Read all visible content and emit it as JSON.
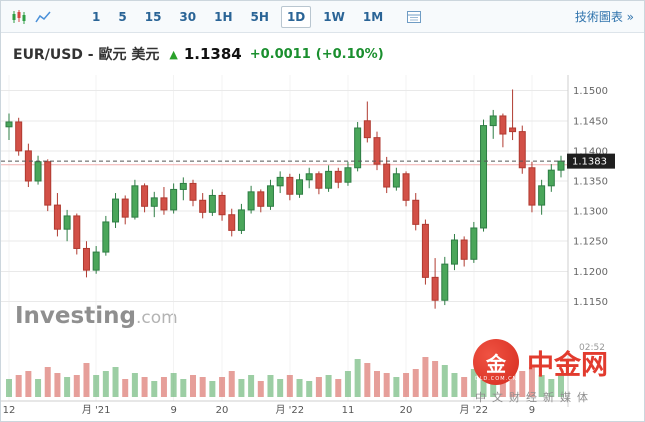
{
  "toolbar": {
    "timeframes": [
      "1",
      "5",
      "15",
      "30",
      "1H",
      "5H",
      "1D",
      "1W",
      "1M"
    ],
    "selected": "1D",
    "tech_link": "技術圖表 »"
  },
  "header": {
    "instrument": "EUR/USD - 歐元 美元",
    "arrow": "▲",
    "price": "1.1384",
    "change": "+0.0011",
    "change_pct": "(+0.10%)"
  },
  "watermark": {
    "brand": "Investing",
    "suffix": ".com"
  },
  "logo": {
    "name": "中金网",
    "subtitle": "中文财经新媒体",
    "circle_char": "金",
    "circle_text": "QLD.COM.CN"
  },
  "footer": {
    "timestamp": "02:52"
  },
  "icons": [
    "candlestick-chart-type-icon",
    "line-chart-type-icon",
    "indicators-panel-icon",
    "up-arrow-icon"
  ],
  "chart_data": {
    "type": "candlestick",
    "symbol": "EUR/USD",
    "interval": "1D",
    "last_price": 1.1383,
    "last_price_label": "1.1383",
    "prev_line": 1.1377,
    "ylim": [
      1.1086,
      1.1526
    ],
    "y_ticks": [
      {
        "v": 1.15,
        "label": "1.1500"
      },
      {
        "v": 1.145,
        "label": "1.1450"
      },
      {
        "v": 1.14,
        "label": "1.1400"
      },
      {
        "v": 1.135,
        "label": "1.1350"
      },
      {
        "v": 1.13,
        "label": "1.1300"
      },
      {
        "v": 1.125,
        "label": "1.1250"
      },
      {
        "v": 1.12,
        "label": "1.1200"
      },
      {
        "v": 1.115,
        "label": "1.1150"
      }
    ],
    "x_ticks": [
      {
        "index": 0,
        "label": "12"
      },
      {
        "index": 9,
        "label": "月 '21"
      },
      {
        "index": 17,
        "label": "9"
      },
      {
        "index": 22,
        "label": "20"
      },
      {
        "index": 29,
        "label": "月 '22"
      },
      {
        "index": 35,
        "label": "11"
      },
      {
        "index": 41,
        "label": "20"
      },
      {
        "index": 48,
        "label": "月 '22"
      },
      {
        "index": 54,
        "label": "9"
      }
    ],
    "candles": [
      [
        1.144,
        1.1462,
        1.1418,
        1.1448,
        0.45
      ],
      [
        1.1448,
        1.1455,
        1.1392,
        1.14,
        0.55
      ],
      [
        1.14,
        1.1412,
        1.134,
        1.135,
        0.65
      ],
      [
        1.135,
        1.1392,
        1.1344,
        1.1382,
        0.45
      ],
      [
        1.1382,
        1.1386,
        1.13,
        1.131,
        0.75
      ],
      [
        1.131,
        1.133,
        1.1258,
        1.127,
        0.6
      ],
      [
        1.127,
        1.1302,
        1.125,
        1.1292,
        0.5
      ],
      [
        1.1292,
        1.1296,
        1.1228,
        1.1238,
        0.55
      ],
      [
        1.1238,
        1.125,
        1.119,
        1.1202,
        0.85
      ],
      [
        1.1202,
        1.1242,
        1.1196,
        1.1232,
        0.55
      ],
      [
        1.1232,
        1.1292,
        1.1226,
        1.1282,
        0.65
      ],
      [
        1.1282,
        1.133,
        1.1272,
        1.132,
        0.75
      ],
      [
        1.132,
        1.1326,
        1.1278,
        1.129,
        0.45
      ],
      [
        1.129,
        1.1352,
        1.1286,
        1.1342,
        0.6
      ],
      [
        1.1342,
        1.1346,
        1.1298,
        1.1308,
        0.5
      ],
      [
        1.1308,
        1.1332,
        1.129,
        1.1322,
        0.4
      ],
      [
        1.1322,
        1.134,
        1.1294,
        1.1302,
        0.5
      ],
      [
        1.1302,
        1.1346,
        1.1296,
        1.1336,
        0.6
      ],
      [
        1.1336,
        1.1356,
        1.1318,
        1.1346,
        0.45
      ],
      [
        1.1346,
        1.1352,
        1.1308,
        1.1318,
        0.55
      ],
      [
        1.1318,
        1.133,
        1.1288,
        1.1298,
        0.5
      ],
      [
        1.1298,
        1.1336,
        1.1292,
        1.1326,
        0.4
      ],
      [
        1.1326,
        1.1332,
        1.1284,
        1.1294,
        0.5
      ],
      [
        1.1294,
        1.1304,
        1.1258,
        1.1268,
        0.65
      ],
      [
        1.1268,
        1.1312,
        1.1262,
        1.1302,
        0.45
      ],
      [
        1.1302,
        1.1342,
        1.1296,
        1.1332,
        0.55
      ],
      [
        1.1332,
        1.1336,
        1.1298,
        1.1308,
        0.4
      ],
      [
        1.1308,
        1.1352,
        1.1302,
        1.1342,
        0.55
      ],
      [
        1.1342,
        1.1366,
        1.133,
        1.1356,
        0.45
      ],
      [
        1.1356,
        1.1362,
        1.1318,
        1.1328,
        0.55
      ],
      [
        1.1328,
        1.1362,
        1.1322,
        1.1352,
        0.45
      ],
      [
        1.1352,
        1.1372,
        1.1338,
        1.1362,
        0.4
      ],
      [
        1.1362,
        1.1366,
        1.1328,
        1.1338,
        0.5
      ],
      [
        1.1338,
        1.1376,
        1.1332,
        1.1366,
        0.55
      ],
      [
        1.1366,
        1.1372,
        1.1338,
        1.1348,
        0.45
      ],
      [
        1.1348,
        1.1382,
        1.1342,
        1.1372,
        0.65
      ],
      [
        1.1372,
        1.1448,
        1.1366,
        1.1438,
        0.95
      ],
      [
        1.145,
        1.1482,
        1.1414,
        1.1422,
        0.85
      ],
      [
        1.1422,
        1.1432,
        1.1368,
        1.1378,
        0.65
      ],
      [
        1.1378,
        1.139,
        1.133,
        1.134,
        0.6
      ],
      [
        1.134,
        1.1372,
        1.1334,
        1.1362,
        0.5
      ],
      [
        1.1362,
        1.1366,
        1.1308,
        1.1318,
        0.6
      ],
      [
        1.1318,
        1.133,
        1.1268,
        1.1278,
        0.7
      ],
      [
        1.1278,
        1.1286,
        1.1178,
        1.119,
        1.0
      ],
      [
        1.119,
        1.1222,
        1.1138,
        1.1152,
        0.9
      ],
      [
        1.1152,
        1.1224,
        1.1144,
        1.1212,
        0.8
      ],
      [
        1.1212,
        1.1262,
        1.1202,
        1.1252,
        0.6
      ],
      [
        1.1252,
        1.1258,
        1.1208,
        1.122,
        0.5
      ],
      [
        1.122,
        1.1282,
        1.1214,
        1.1272,
        0.7
      ],
      [
        1.1272,
        1.1452,
        1.1266,
        1.1442,
        1.0
      ],
      [
        1.1442,
        1.1468,
        1.142,
        1.1458,
        0.8
      ],
      [
        1.1458,
        1.1462,
        1.1406,
        1.1428,
        0.7
      ],
      [
        1.1438,
        1.1502,
        1.1418,
        1.1432,
        0.8
      ],
      [
        1.1432,
        1.1442,
        1.1362,
        1.1372,
        0.65
      ],
      [
        1.1372,
        1.1382,
        1.1298,
        1.131,
        0.75
      ],
      [
        1.131,
        1.1352,
        1.1294,
        1.1342,
        0.55
      ],
      [
        1.1342,
        1.1378,
        1.1332,
        1.1368,
        0.45
      ],
      [
        1.1368,
        1.1392,
        1.1356,
        1.1383,
        0.55
      ]
    ],
    "colors": {
      "up": "#4aa65a",
      "up_border": "#2e7d44",
      "down": "#d25047",
      "down_border": "#b03a30",
      "up_vol": "rgba(74,166,90,0.55)",
      "down_vol": "rgba(210,80,71,0.55)",
      "grid": "#e9e9e9",
      "axis": "#cfcfcf",
      "last_line": "#555555",
      "last_box": "#1f1f1f",
      "prev_line": "#f0b0b0"
    }
  }
}
